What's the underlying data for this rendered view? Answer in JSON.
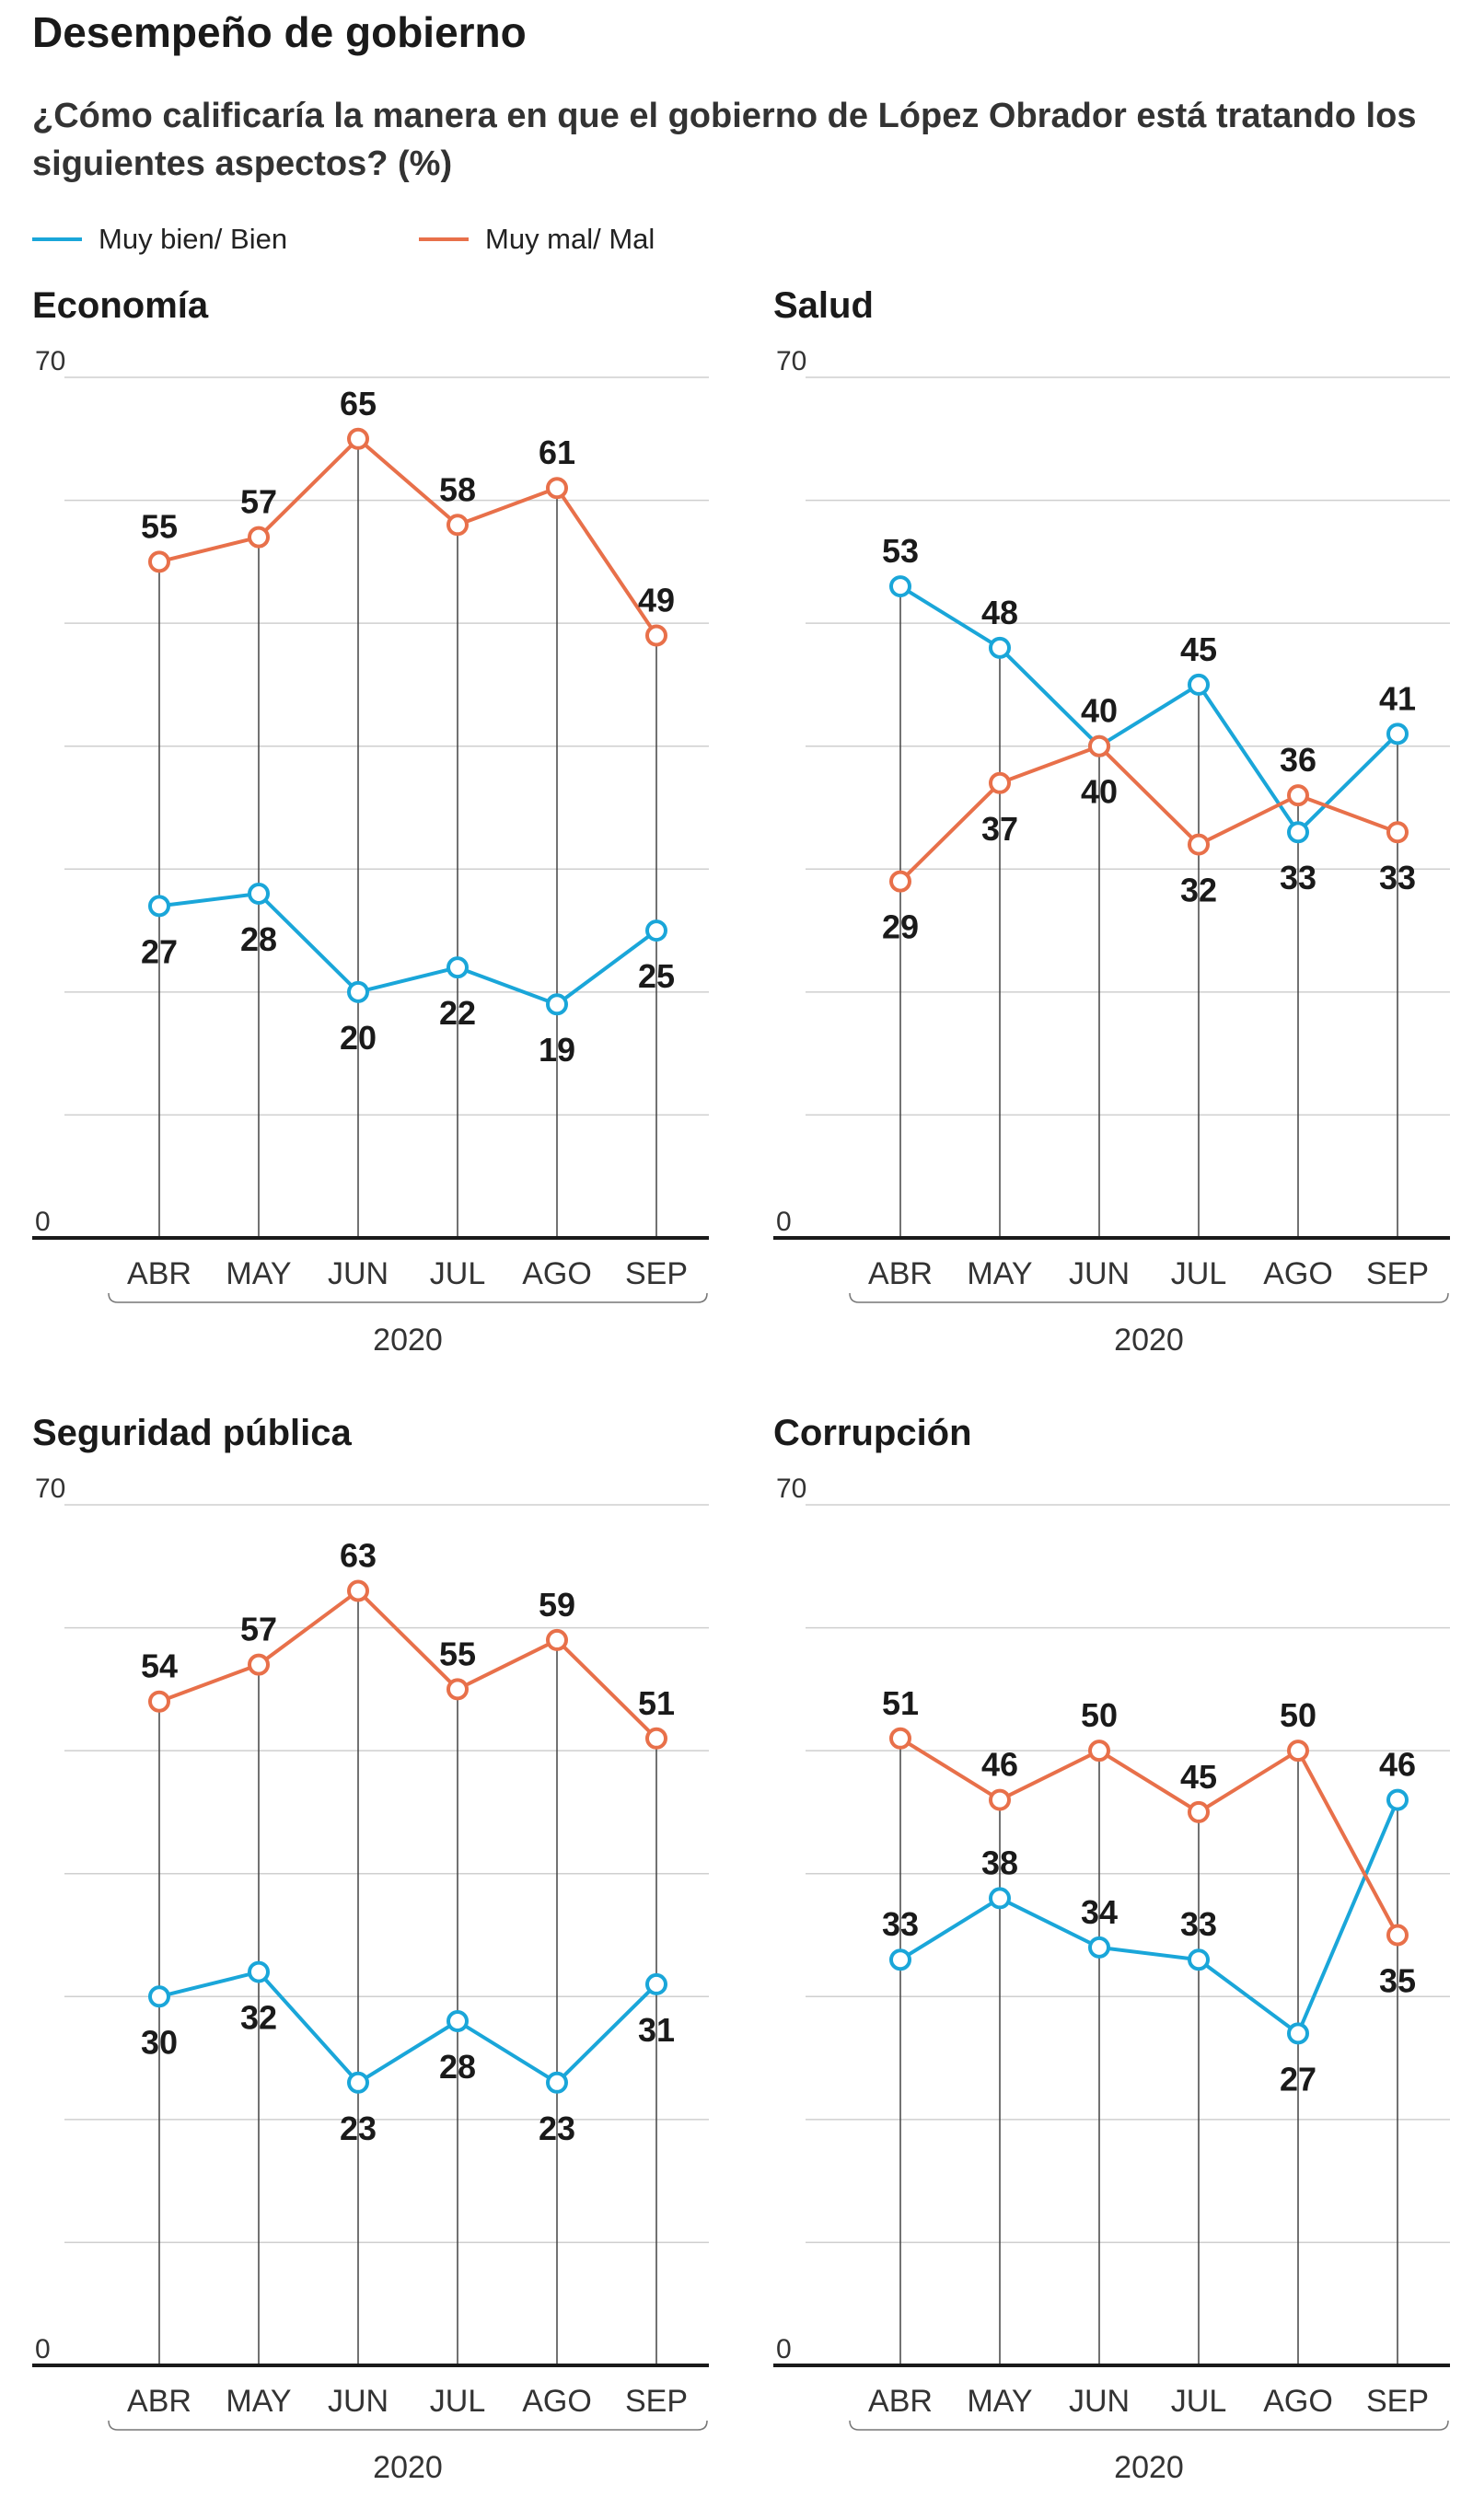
{
  "header": {
    "title": "Desempeño de gobierno",
    "subtitle": "¿Cómo calificaría la manera en que el gobierno de López Obrador está tratando los siguientes aspectos? (%)"
  },
  "legend": [
    {
      "name": "Muy bien/ Bien",
      "color": "#1aa6d9"
    },
    {
      "name": "Muy mal/ Mal",
      "color": "#e8704a"
    }
  ],
  "chart_data": [
    {
      "type": "line",
      "title": "Economía",
      "x": [
        "ABR",
        "MAY",
        "JUN",
        "JUL",
        "AGO",
        "SEP"
      ],
      "year_label": "2020",
      "ylim": [
        0,
        70
      ],
      "y_ticks": [
        0,
        70
      ],
      "series": [
        {
          "name": "Muy bien/ Bien",
          "values": [
            27,
            28,
            20,
            22,
            19,
            25
          ]
        },
        {
          "name": "Muy mal/ Mal",
          "values": [
            55,
            57,
            65,
            58,
            61,
            49
          ]
        }
      ]
    },
    {
      "type": "line",
      "title": "Salud",
      "x": [
        "ABR",
        "MAY",
        "JUN",
        "JUL",
        "AGO",
        "SEP"
      ],
      "year_label": "2020",
      "ylim": [
        0,
        70
      ],
      "y_ticks": [
        0,
        70
      ],
      "series": [
        {
          "name": "Muy bien/ Bien",
          "values": [
            53,
            48,
            40,
            45,
            33,
            41
          ]
        },
        {
          "name": "Muy mal/ Mal",
          "values": [
            29,
            37,
            40,
            32,
            36,
            33
          ]
        }
      ]
    },
    {
      "type": "line",
      "title": "Seguridad pública",
      "x": [
        "ABR",
        "MAY",
        "JUN",
        "JUL",
        "AGO",
        "SEP"
      ],
      "year_label": "2020",
      "ylim": [
        0,
        70
      ],
      "y_ticks": [
        0,
        70
      ],
      "series": [
        {
          "name": "Muy bien/ Bien",
          "values": [
            30,
            32,
            23,
            28,
            23,
            31
          ]
        },
        {
          "name": "Muy mal/ Mal",
          "values": [
            54,
            57,
            63,
            55,
            59,
            51
          ]
        }
      ]
    },
    {
      "type": "line",
      "title": "Corrupción",
      "x": [
        "ABR",
        "MAY",
        "JUN",
        "JUL",
        "AGO",
        "SEP"
      ],
      "year_label": "2020",
      "ylim": [
        0,
        70
      ],
      "y_ticks": [
        0,
        70
      ],
      "series": [
        {
          "name": "Muy bien/ Bien",
          "values": [
            33,
            38,
            34,
            33,
            27,
            46
          ]
        },
        {
          "name": "Muy mal/ Mal",
          "values": [
            51,
            46,
            50,
            45,
            50,
            35
          ]
        }
      ]
    }
  ]
}
